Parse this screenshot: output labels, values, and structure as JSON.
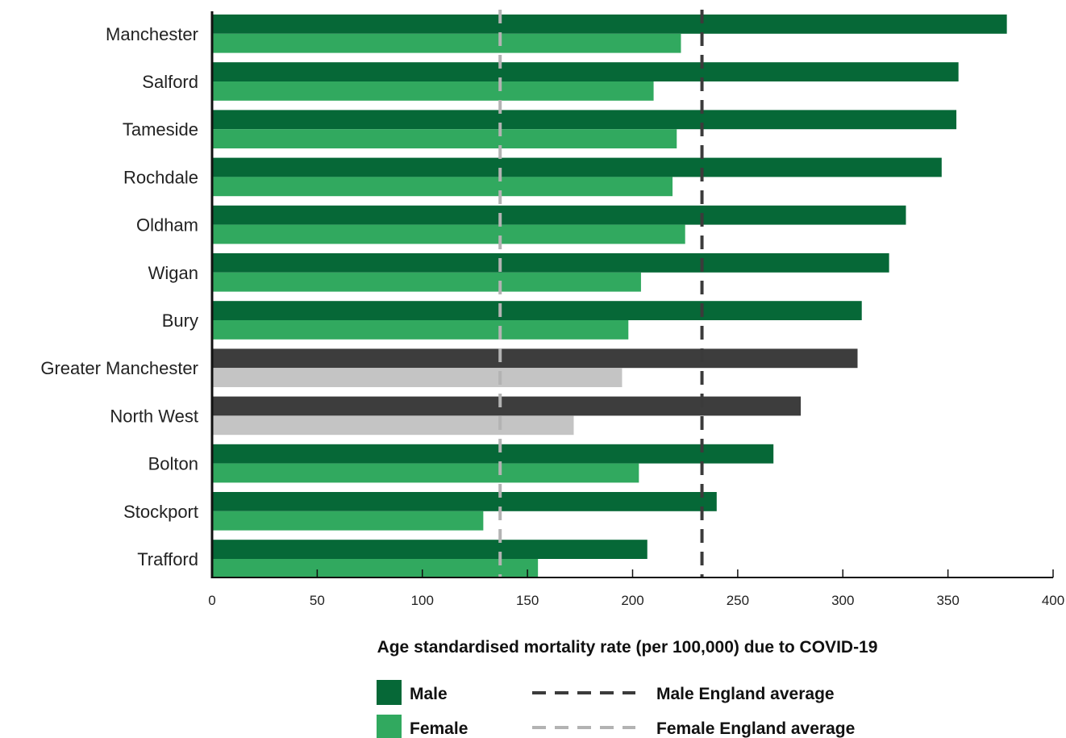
{
  "chart_data": {
    "type": "bar",
    "orientation": "horizontal",
    "title": "",
    "xlabel": "Age standardised mortality rate (per 100,000) due to COVID-19",
    "ylabel": "",
    "xlim": [
      0,
      400
    ],
    "xticks": [
      0,
      50,
      100,
      150,
      200,
      250,
      300,
      350,
      400
    ],
    "grid": false,
    "categories": [
      "Manchester",
      "Salford",
      "Tameside",
      "Rochdale",
      "Oldham",
      "Wigan",
      "Bury",
      "Greater Manchester",
      "North West",
      "Bolton",
      "Stockport",
      "Trafford"
    ],
    "series": [
      {
        "name": "Male",
        "values": [
          378,
          355,
          354,
          347,
          330,
          322,
          309,
          307,
          280,
          267,
          240,
          207
        ]
      },
      {
        "name": "Female",
        "values": [
          223,
          210,
          221,
          219,
          225,
          204,
          198,
          195,
          172,
          203,
          129,
          155
        ]
      }
    ],
    "aggregate_categories": [
      "Greater Manchester",
      "North West"
    ],
    "reference_lines": [
      {
        "name": "Male England average",
        "value": 233,
        "style": "dashed"
      },
      {
        "name": "Female England average",
        "value": 137,
        "style": "dashed"
      }
    ],
    "colors": {
      "male": "#066837",
      "female": "#31a95f",
      "aggregate_male": "#3d3d3d",
      "aggregate_female": "#c4c4c4",
      "male_avg_line": "#3b3b3b",
      "female_avg_line": "#b3b3b3",
      "axis": "#111111"
    },
    "legend": {
      "placement": "bottom",
      "items": [
        {
          "label": "Male",
          "kind": "swatch",
          "color": "#066837"
        },
        {
          "label": "Female",
          "kind": "swatch",
          "color": "#31a95f"
        },
        {
          "label": "Male England average",
          "kind": "dashed-line",
          "color": "#3b3b3b"
        },
        {
          "label": "Female England average",
          "kind": "dashed-line",
          "color": "#b3b3b3"
        }
      ]
    }
  }
}
